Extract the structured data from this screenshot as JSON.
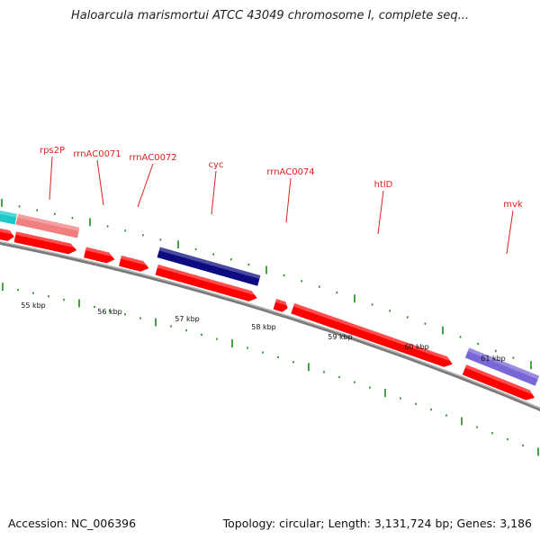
{
  "title": "Haloarcula marismortui ATCC 43049 chromosome I, complete seq...",
  "footer": {
    "accession": "Accession: NC_006396",
    "stats": "Topology: circular; Length: 3,131,724 bp; Genes: 3,186"
  },
  "colors": {
    "gene_label": "#e0201c",
    "forward_cds": "#ff0000",
    "navy_feature": "#0c0c80",
    "cyan_feature": "#1ec8c8",
    "pink_feature": "#f08080",
    "purple_feature": "#7a66d6",
    "tick": "#1a8a1a",
    "backbone": "#7a7a7a"
  },
  "gene_labels": [
    {
      "text": "rps2P"
    },
    {
      "text": "rrnAC0071"
    },
    {
      "text": "rrnAC0072"
    },
    {
      "text": "cyc"
    },
    {
      "text": "rrnAC0074"
    },
    {
      "text": "htlD"
    },
    {
      "text": "mvk"
    }
  ],
  "kbp_labels": [
    "55 kbp",
    "56 kbp",
    "57 kbp",
    "58 kbp",
    "59 kbp",
    "60 kbp",
    "61 kbp"
  ]
}
